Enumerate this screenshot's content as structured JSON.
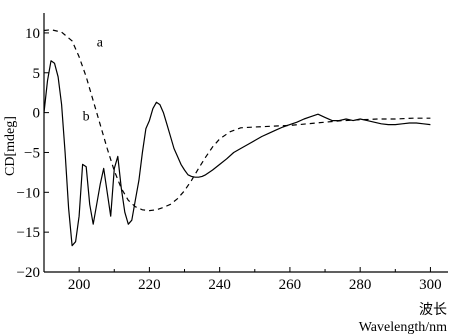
{
  "chart_data": {
    "type": "line",
    "xlabel_cn": "波长",
    "xlabel": "Wavelength/nm",
    "ylabel": "CD[mdeg]",
    "xlim": [
      190,
      305
    ],
    "ylim": [
      -20,
      12.5
    ],
    "x_ticks": [
      200,
      220,
      240,
      260,
      280,
      300
    ],
    "y_ticks": [
      10,
      5,
      0,
      -5,
      -10,
      -15,
      -20
    ],
    "series": [
      {
        "name": "a",
        "style": "dashed",
        "color": "#000000",
        "x": [
          190,
          192,
          195,
          198,
          200,
          202,
          204,
          206,
          208,
          210,
          212,
          214,
          216,
          218,
          220,
          222,
          224,
          226,
          228,
          230,
          232,
          234,
          236,
          238,
          240,
          243,
          246,
          250,
          255,
          260,
          265,
          270,
          275,
          280,
          285,
          290,
          295,
          300
        ],
        "y": [
          10.3,
          10.4,
          10.1,
          9.0,
          7.0,
          4.5,
          1.5,
          -1.5,
          -4.5,
          -7.3,
          -9.5,
          -11.0,
          -11.8,
          -12.2,
          -12.3,
          -12.2,
          -11.9,
          -11.5,
          -10.8,
          -9.8,
          -8.5,
          -7.0,
          -5.6,
          -4.3,
          -3.3,
          -2.4,
          -1.9,
          -1.8,
          -1.7,
          -1.6,
          -1.4,
          -1.2,
          -1.0,
          -0.9,
          -0.8,
          -0.8,
          -0.7,
          -0.7
        ]
      },
      {
        "name": "b",
        "style": "solid",
        "color": "#000000",
        "x": [
          190,
          191,
          192,
          193,
          194,
          195,
          196,
          197,
          198,
          199,
          200,
          201,
          202,
          203,
          204,
          205,
          206,
          207,
          208,
          209,
          210,
          211,
          212,
          213,
          214,
          215,
          216,
          217,
          218,
          219,
          220,
          221,
          222,
          223,
          224,
          225,
          226,
          227,
          228,
          229,
          230,
          231,
          232,
          233,
          234,
          235,
          236,
          238,
          240,
          242,
          244,
          246,
          248,
          250,
          252,
          254,
          256,
          258,
          260,
          262,
          264,
          266,
          268,
          270,
          272,
          274,
          276,
          278,
          280,
          282,
          284,
          286,
          288,
          290,
          292,
          294,
          296,
          298,
          300
        ],
        "y": [
          0.0,
          4.0,
          6.5,
          6.2,
          4.5,
          1.0,
          -5.0,
          -12.0,
          -16.7,
          -16.2,
          -13.0,
          -6.5,
          -6.8,
          -11.5,
          -14.0,
          -11.5,
          -9.0,
          -7.0,
          -10.0,
          -13.0,
          -7.0,
          -5.5,
          -9.5,
          -12.5,
          -14.0,
          -13.5,
          -11.0,
          -8.5,
          -5.0,
          -2.0,
          -1.0,
          0.5,
          1.3,
          1.0,
          0.0,
          -1.5,
          -3.0,
          -4.5,
          -5.5,
          -6.5,
          -7.2,
          -7.8,
          -8.0,
          -8.1,
          -8.1,
          -8.0,
          -7.8,
          -7.2,
          -6.5,
          -5.8,
          -5.0,
          -4.5,
          -4.0,
          -3.5,
          -3.0,
          -2.6,
          -2.2,
          -1.8,
          -1.5,
          -1.2,
          -0.8,
          -0.5,
          -0.2,
          -0.6,
          -1.0,
          -1.0,
          -0.8,
          -1.0,
          -0.8,
          -1.0,
          -1.2,
          -1.4,
          -1.5,
          -1.5,
          -1.4,
          -1.3,
          -1.3,
          -1.4,
          -1.5
        ]
      }
    ],
    "curve_labels": [
      {
        "text": "a",
        "x": 205,
        "y": 8.3
      },
      {
        "text": "b",
        "x": 201,
        "y": -1.0
      }
    ]
  }
}
